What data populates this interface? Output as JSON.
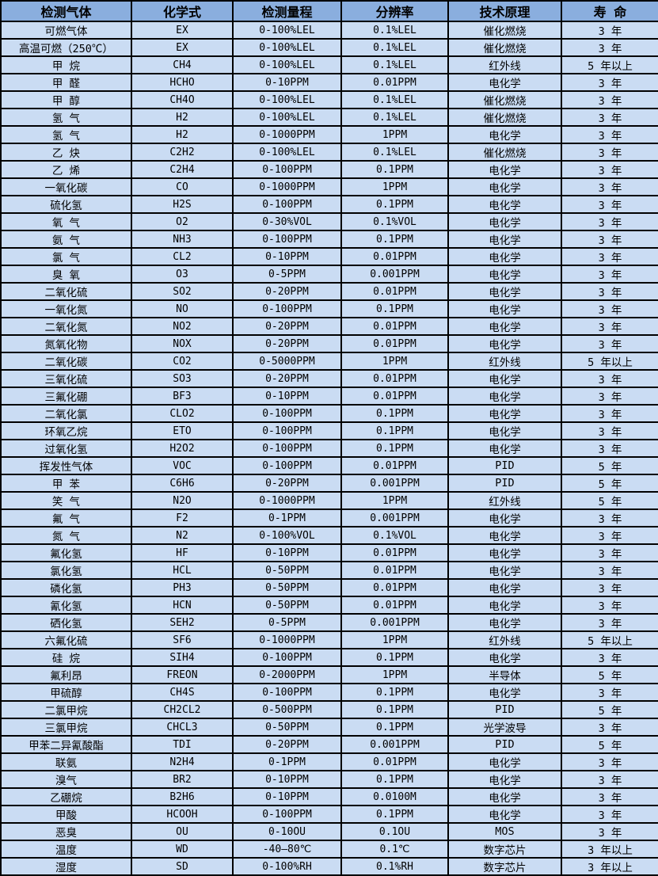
{
  "table": {
    "header": {
      "columns": [
        "检测气体",
        "化学式",
        "检测量程",
        "分辨率",
        "技术原理",
        "寿 命"
      ]
    },
    "colors": {
      "header_bg": "#8aaede",
      "row_bg": "#cadcf3",
      "border": "#000000",
      "text": "#000000"
    },
    "rows": [
      {
        "gas": "可燃气体",
        "formula": "EX",
        "range": "0-100%LEL",
        "resolution": "0.1%LEL",
        "principle": "催化燃烧",
        "life": "3 年"
      },
      {
        "gas": "高温可燃（250℃）",
        "formula": "EX",
        "range": "0-100%LEL",
        "resolution": "0.1%LEL",
        "principle": "催化燃烧",
        "life": "3 年"
      },
      {
        "gas": "甲 烷",
        "formula": "CH4",
        "range": "0-100%LEL",
        "resolution": "0.1%LEL",
        "principle": "红外线",
        "life": "5 年以上"
      },
      {
        "gas": "甲 醛",
        "formula": "HCHO",
        "range": "0-10PPM",
        "resolution": "0.01PPM",
        "principle": "电化学",
        "life": "3 年"
      },
      {
        "gas": "甲 醇",
        "formula": "CH4O",
        "range": "0-100%LEL",
        "resolution": "0.1%LEL",
        "principle": "催化燃烧",
        "life": "3 年"
      },
      {
        "gas": "氢 气",
        "formula": "H2",
        "range": "0-100%LEL",
        "resolution": "0.1%LEL",
        "principle": "催化燃烧",
        "life": "3 年"
      },
      {
        "gas": "氢 气",
        "formula": "H2",
        "range": "0-1000PPM",
        "resolution": "1PPM",
        "principle": "电化学",
        "life": "3 年"
      },
      {
        "gas": "乙 炔",
        "formula": "C2H2",
        "range": "0-100%LEL",
        "resolution": "0.1%LEL",
        "principle": "催化燃烧",
        "life": "3 年"
      },
      {
        "gas": "乙 烯",
        "formula": "C2H4",
        "range": "0-100PPM",
        "resolution": "0.1PPM",
        "principle": "电化学",
        "life": "3 年"
      },
      {
        "gas": "一氧化碳",
        "formula": "CO",
        "range": "0-1000PPM",
        "resolution": "1PPM",
        "principle": "电化学",
        "life": "3 年"
      },
      {
        "gas": "硫化氢",
        "formula": "H2S",
        "range": "0-100PPM",
        "resolution": "0.1PPM",
        "principle": "电化学",
        "life": "3 年"
      },
      {
        "gas": "氧 气",
        "formula": "O2",
        "range": "0-30%VOL",
        "resolution": "0.1%VOL",
        "principle": "电化学",
        "life": "3 年"
      },
      {
        "gas": "氨 气",
        "formula": "NH3",
        "range": "0-100PPM",
        "resolution": "0.1PPM",
        "principle": "电化学",
        "life": "3 年"
      },
      {
        "gas": "氯 气",
        "formula": "CL2",
        "range": "0-10PPM",
        "resolution": "0.01PPM",
        "principle": "电化学",
        "life": "3 年"
      },
      {
        "gas": "臭 氧",
        "formula": "O3",
        "range": "0-5PPM",
        "resolution": "0.001PPM",
        "principle": "电化学",
        "life": "3 年"
      },
      {
        "gas": "二氧化硫",
        "formula": "SO2",
        "range": "0-20PPM",
        "resolution": "0.01PPM",
        "principle": "电化学",
        "life": "3 年"
      },
      {
        "gas": "一氧化氮",
        "formula": "NO",
        "range": "0-100PPM",
        "resolution": "0.1PPM",
        "principle": "电化学",
        "life": "3 年"
      },
      {
        "gas": "二氧化氮",
        "formula": "NO2",
        "range": "0-20PPM",
        "resolution": "0.01PPM",
        "principle": "电化学",
        "life": "3 年"
      },
      {
        "gas": "氮氧化物",
        "formula": "NOX",
        "range": "0-20PPM",
        "resolution": "0.01PPM",
        "principle": "电化学",
        "life": "3 年"
      },
      {
        "gas": "二氧化碳",
        "formula": "CO2",
        "range": "0-5000PPM",
        "resolution": "1PPM",
        "principle": "红外线",
        "life": "5 年以上"
      },
      {
        "gas": "三氧化硫",
        "formula": "SO3",
        "range": "0-20PPM",
        "resolution": "0.01PPM",
        "principle": "电化学",
        "life": "3 年"
      },
      {
        "gas": "三氟化硼",
        "formula": "BF3",
        "range": "0-10PPM",
        "resolution": "0.01PPM",
        "principle": "电化学",
        "life": "3 年"
      },
      {
        "gas": "二氧化氯",
        "formula": "CLO2",
        "range": "0-100PPM",
        "resolution": "0.1PPM",
        "principle": "电化学",
        "life": "3 年"
      },
      {
        "gas": "环氧乙烷",
        "formula": "ETO",
        "range": "0-100PPM",
        "resolution": "0.1PPM",
        "principle": "电化学",
        "life": "3 年"
      },
      {
        "gas": "过氧化氢",
        "formula": "H2O2",
        "range": "0-100PPM",
        "resolution": "0.1PPM",
        "principle": "电化学",
        "life": "3 年"
      },
      {
        "gas": "挥发性气体",
        "formula": "VOC",
        "range": "0-100PPM",
        "resolution": "0.01PPM",
        "principle": "PID",
        "life": "5 年"
      },
      {
        "gas": "甲 苯",
        "formula": "C6H6",
        "range": "0-20PPM",
        "resolution": "0.001PPM",
        "principle": "PID",
        "life": "5 年"
      },
      {
        "gas": "笑 气",
        "formula": "N2O",
        "range": "0-1000PPM",
        "resolution": "1PPM",
        "principle": "红外线",
        "life": "5 年"
      },
      {
        "gas": "氟 气",
        "formula": "F2",
        "range": "0-1PPM",
        "resolution": "0.001PPM",
        "principle": "电化学",
        "life": "3 年"
      },
      {
        "gas": "氮 气",
        "formula": "N2",
        "range": "0-100%VOL",
        "resolution": "0.1%VOL",
        "principle": "电化学",
        "life": "3 年"
      },
      {
        "gas": "氟化氢",
        "formula": "HF",
        "range": "0-10PPM",
        "resolution": "0.01PPM",
        "principle": "电化学",
        "life": "3 年"
      },
      {
        "gas": "氯化氢",
        "formula": "HCL",
        "range": "0-50PPM",
        "resolution": "0.01PPM",
        "principle": "电化学",
        "life": "3 年"
      },
      {
        "gas": "磷化氢",
        "formula": "PH3",
        "range": "0-50PPM",
        "resolution": "0.01PPM",
        "principle": "电化学",
        "life": "3 年"
      },
      {
        "gas": "氰化氢",
        "formula": "HCN",
        "range": "0-50PPM",
        "resolution": "0.01PPM",
        "principle": "电化学",
        "life": "3 年"
      },
      {
        "gas": "硒化氢",
        "formula": "SEH2",
        "range": "0-5PPM",
        "resolution": "0.001PPM",
        "principle": "电化学",
        "life": "3 年"
      },
      {
        "gas": "六氟化硫",
        "formula": "SF6",
        "range": "0-1000PPM",
        "resolution": "1PPM",
        "principle": "红外线",
        "life": "5 年以上"
      },
      {
        "gas": "硅 烷",
        "formula": "SIH4",
        "range": "0-100PPM",
        "resolution": "0.1PPM",
        "principle": "电化学",
        "life": "3 年"
      },
      {
        "gas": "氟利昂",
        "formula": "FREON",
        "range": "0-2000PPM",
        "resolution": "1PPM",
        "principle": "半导体",
        "life": "5 年"
      },
      {
        "gas": "甲硫醇",
        "formula": "CH4S",
        "range": "0-100PPM",
        "resolution": "0.1PPM",
        "principle": "电化学",
        "life": "3 年"
      },
      {
        "gas": "二氯甲烷",
        "formula": "CH2CL2",
        "range": "0-500PPM",
        "resolution": "0.1PPM",
        "principle": "PID",
        "life": "5 年"
      },
      {
        "gas": "三氯甲烷",
        "formula": "CHCL3",
        "range": "0-50PPM",
        "resolution": "0.1PPM",
        "principle": "光学波导",
        "life": "3 年"
      },
      {
        "gas": "甲苯二异氰酸酯",
        "formula": "TDI",
        "range": "0-20PPM",
        "resolution": "0.001PPM",
        "principle": "PID",
        "life": "5 年"
      },
      {
        "gas": "联氨",
        "formula": "N2H4",
        "range": "0-1PPM",
        "resolution": "0.01PPM",
        "principle": "电化学",
        "life": "3 年"
      },
      {
        "gas": "溴气",
        "formula": "BR2",
        "range": "0-10PPM",
        "resolution": "0.1PPM",
        "principle": "电化学",
        "life": "3 年"
      },
      {
        "gas": "乙硼烷",
        "formula": "B2H6",
        "range": "0-10PPM",
        "resolution": "0.0100M",
        "principle": "电化学",
        "life": "3 年"
      },
      {
        "gas": "甲酸",
        "formula": "HCOOH",
        "range": "0-100PPM",
        "resolution": "0.1PPM",
        "principle": "电化学",
        "life": "3 年"
      },
      {
        "gas": "恶臭",
        "formula": "OU",
        "range": "0-10OU",
        "resolution": "0.1OU",
        "principle": "MOS",
        "life": "3 年"
      },
      {
        "gas": "温度",
        "formula": "WD",
        "range": "-40—80℃",
        "resolution": "0.1℃",
        "principle": "数字芯片",
        "life": "3 年以上"
      },
      {
        "gas": "湿度",
        "formula": "SD",
        "range": "0-100%RH",
        "resolution": "0.1%RH",
        "principle": "数字芯片",
        "life": "3 年以上"
      }
    ]
  }
}
